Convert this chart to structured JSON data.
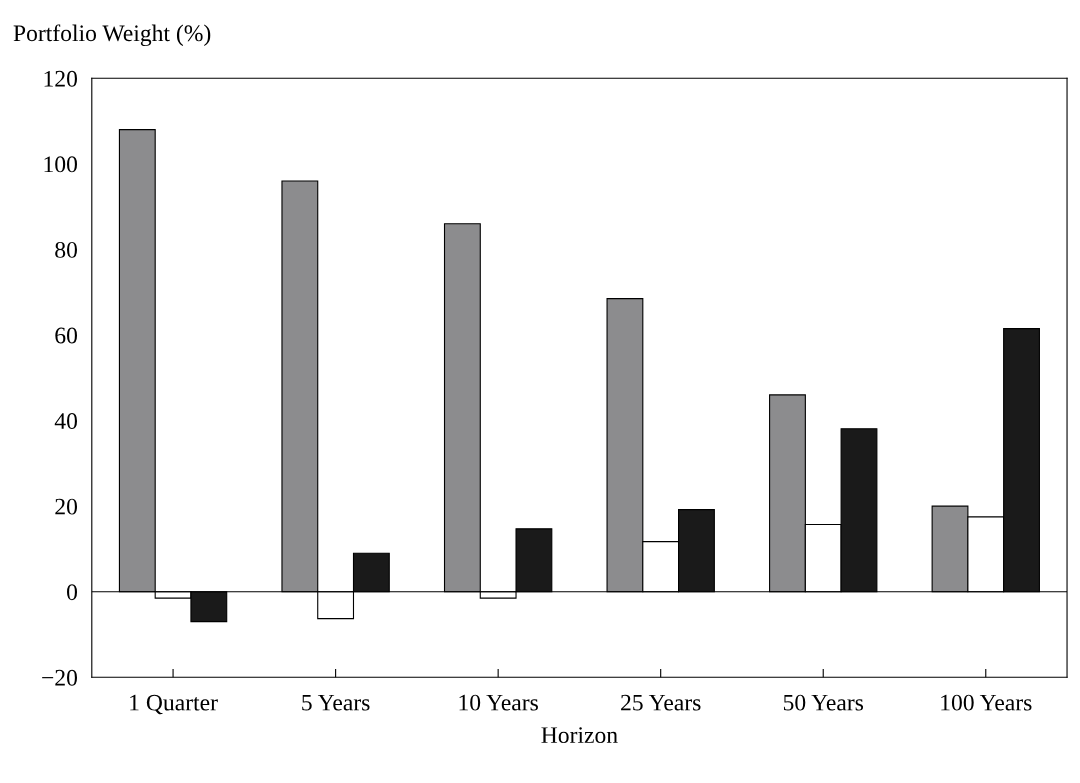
{
  "chart_data": {
    "type": "bar",
    "ylabel": "Portfolio Weight (%)",
    "xlabel": "Horizon",
    "categories": [
      "1 Quarter",
      "5 Years",
      "10 Years",
      "25 Years",
      "50 Years",
      "100 Years"
    ],
    "series": [
      {
        "color": "#8c8c8e",
        "values": [
          108,
          96,
          86,
          68.5,
          46,
          20
        ]
      },
      {
        "color": "#ffffff",
        "values": [
          -1.5,
          -6.3,
          -1.5,
          11.7,
          15.7,
          17.5
        ]
      },
      {
        "color": "#1a1a1a",
        "values": [
          -7,
          9,
          14.7,
          19.2,
          38.1,
          61.5
        ]
      }
    ],
    "ylim": [
      -20,
      120
    ],
    "yticks": [
      {
        "value": -20,
        "label": "−20"
      },
      0,
      20,
      40,
      60,
      80,
      100,
      120
    ],
    "ref_lines": [
      {
        "axis": "y",
        "value": 0,
        "color": "#000000"
      }
    ],
    "grid": false,
    "legend": false
  }
}
